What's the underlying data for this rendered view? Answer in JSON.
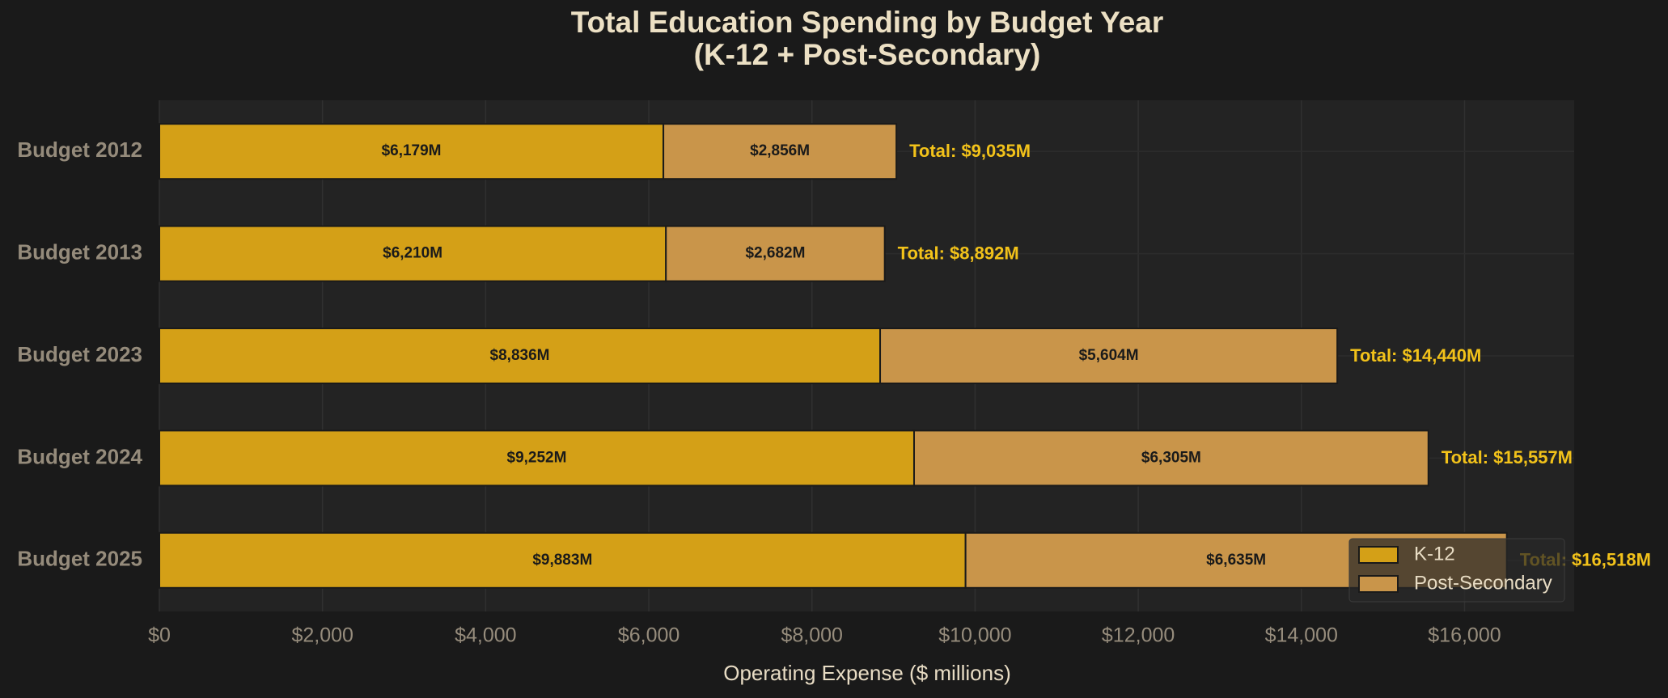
{
  "chart_data": {
    "type": "stacked-barh",
    "title": [
      "Total Education Spending by Budget Year",
      "(K-12 + Post-Secondary)"
    ],
    "xlabel": "Operating Expense ($ millions)",
    "categories": [
      "Budget 2012",
      "Budget 2013",
      "Budget 2023",
      "Budget 2024",
      "Budget 2025"
    ],
    "series": [
      {
        "name": "K-12",
        "color": "#d4a017",
        "values": [
          6179,
          6210,
          8836,
          9252,
          9883
        ],
        "value_labels": [
          "$6,179M",
          "$6,210M",
          "$8,836M",
          "$9,252M",
          "$9,883M"
        ]
      },
      {
        "name": "Post-Secondary",
        "color": "#c9954a",
        "values": [
          2856,
          2682,
          5604,
          6305,
          6635
        ],
        "value_labels": [
          "$2,856M",
          "$2,682M",
          "$5,604M",
          "$6,305M",
          "$6,635M"
        ]
      }
    ],
    "totals": {
      "values": [
        9035,
        8892,
        14440,
        15557,
        16518
      ],
      "value_labels": [
        "Total: $9,035M",
        "Total: $8,892M",
        "Total: $14,440M",
        "Total: $15,557M",
        "Total: $16,518M"
      ]
    },
    "xlim": [
      0,
      17344
    ],
    "xticks": [
      {
        "value": 0,
        "label": "$0"
      },
      {
        "value": 2000,
        "label": "$2,000"
      },
      {
        "value": 4000,
        "label": "$4,000"
      },
      {
        "value": 6000,
        "label": "$6,000"
      },
      {
        "value": 8000,
        "label": "$8,000"
      },
      {
        "value": 10000,
        "label": "$10,000"
      },
      {
        "value": 12000,
        "label": "$12,000"
      },
      {
        "value": 14000,
        "label": "$14,000"
      },
      {
        "value": 16000,
        "label": "$16,000"
      }
    ],
    "grid": true,
    "legend": "lower right"
  }
}
